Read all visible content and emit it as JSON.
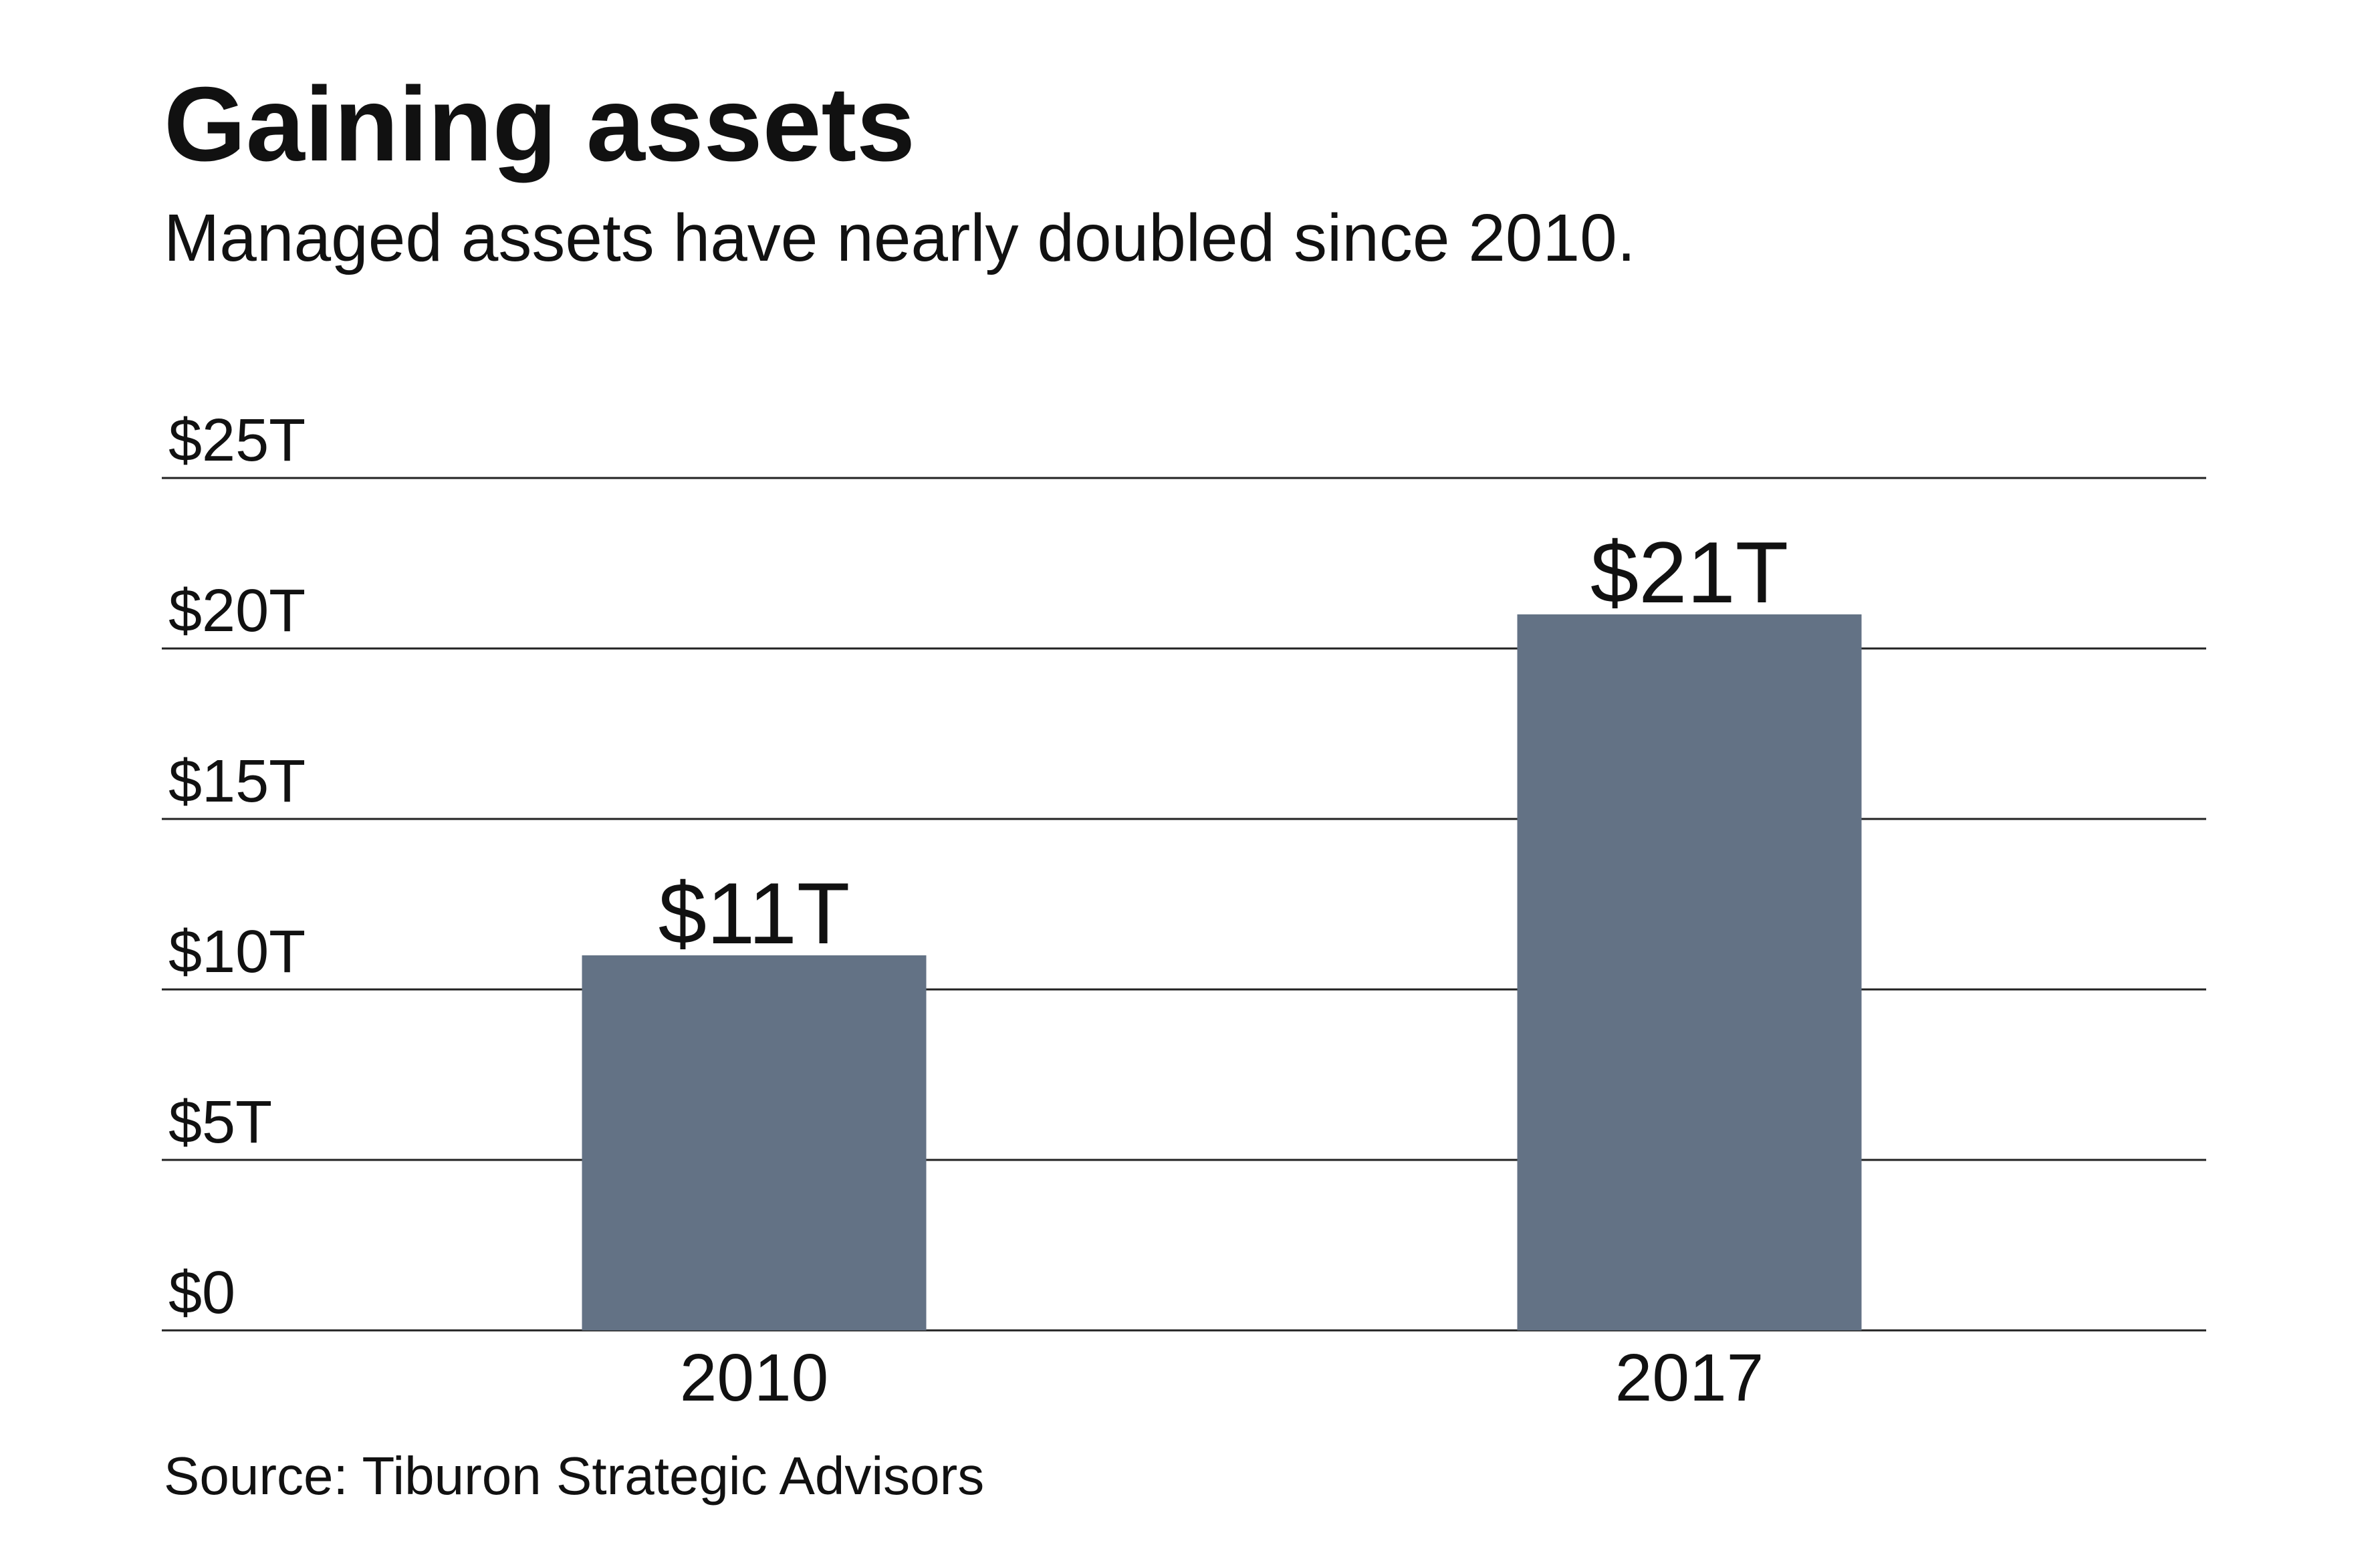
{
  "colors": {
    "bar": "#637285",
    "grid": "#222222",
    "text": "#111111",
    "background": "#ffffff"
  },
  "chart_data": {
    "type": "bar",
    "title": "Gaining assets",
    "subtitle": "Managed assets have nearly doubled since 2010.",
    "xlabel": "",
    "ylabel": "",
    "categories": [
      "2010",
      "2017"
    ],
    "values": [
      11,
      21
    ],
    "data_labels": [
      "$11T",
      "$21T"
    ],
    "ylim": [
      0,
      25
    ],
    "yticks": [
      0,
      5,
      10,
      15,
      20,
      25
    ],
    "ytick_labels": [
      "$0",
      "$5T",
      "$10T",
      "$15T",
      "$20T",
      "$25T"
    ],
    "grid": true,
    "legend": "none",
    "source": "Source: Tiburon Strategic Advisors"
  }
}
